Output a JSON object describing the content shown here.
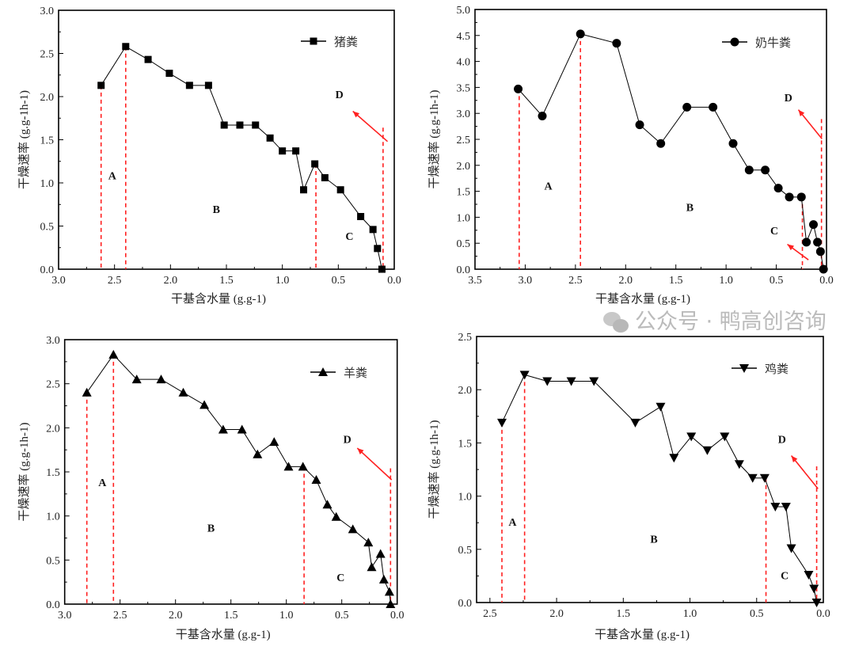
{
  "chart_data": [
    {
      "type": "line",
      "xlabel": "干基含水量 (g.g-1)",
      "ylabel": "干燥速率 (g.g-1h-1)",
      "xlim": [
        3.0,
        0.0
      ],
      "ylim": [
        0,
        3.0
      ],
      "xticks": [
        "3.0",
        "2.5",
        "2.0",
        "1.5",
        "1.0",
        "0.5",
        "0.0"
      ],
      "yticks": [
        "0.0",
        "0.5",
        "1.0",
        "1.5",
        "2.0",
        "2.5",
        "3.0"
      ],
      "legend_position": "top-right",
      "marker": "square",
      "series": [
        {
          "name": "猪粪",
          "x": [
            2.62,
            2.4,
            2.2,
            2.01,
            1.83,
            1.66,
            1.52,
            1.38,
            1.24,
            1.11,
            1.0,
            0.88,
            0.81,
            0.71,
            0.62,
            0.48,
            0.3,
            0.19,
            0.15,
            0.11
          ],
          "y": [
            2.13,
            2.58,
            2.43,
            2.27,
            2.13,
            2.13,
            1.67,
            1.67,
            1.67,
            1.52,
            1.37,
            1.37,
            0.92,
            1.22,
            1.06,
            0.92,
            0.61,
            0.46,
            0.24,
            0.0
          ]
        }
      ],
      "dividers": [
        {
          "x": 2.62,
          "y": 2.13
        },
        {
          "x": 2.4,
          "y": 2.58
        },
        {
          "x": 0.7,
          "y": 1.22
        },
        {
          "x": 0.1,
          "y": 1.64
        }
      ],
      "arrows": [
        {
          "from": [
            0.06,
            1.48
          ],
          "to": [
            0.37,
            1.83
          ]
        }
      ],
      "regions": [
        {
          "label": "A",
          "x": 2.52,
          "y": 1.04
        },
        {
          "label": "B",
          "x": 1.59,
          "y": 0.65
        },
        {
          "label": "C",
          "x": 0.4,
          "y": 0.34
        },
        {
          "label": "D",
          "x": 0.49,
          "y": 1.98
        }
      ],
      "colors": {
        "line": "#000000",
        "divider": "#ff2020",
        "arrow": "#ff2020"
      }
    },
    {
      "type": "line",
      "xlabel": "干基含水量 (g.g-1)",
      "ylabel": "干燥速率 (g.g-1h-1)",
      "xlim": [
        3.5,
        0.0
      ],
      "ylim": [
        0,
        5.0
      ],
      "xticks": [
        "3.5",
        "3.0",
        "2.5",
        "2.0",
        "1.5",
        "1.0",
        "0.5",
        "0.0"
      ],
      "yticks": [
        "0.0",
        "0.5",
        "1.0",
        "1.5",
        "2.0",
        "2.5",
        "3.0",
        "3.5",
        "4.0",
        "4.5",
        "5.0"
      ],
      "legend_position": "top-right",
      "marker": "circle",
      "series": [
        {
          "name": "奶牛粪",
          "x": [
            3.07,
            2.83,
            2.45,
            2.09,
            1.86,
            1.65,
            1.39,
            1.13,
            0.93,
            0.77,
            0.61,
            0.48,
            0.37,
            0.25,
            0.2,
            0.13,
            0.09,
            0.06,
            0.03
          ],
          "y": [
            3.47,
            2.95,
            4.53,
            4.35,
            2.78,
            2.42,
            3.12,
            3.12,
            2.42,
            1.91,
            1.91,
            1.56,
            1.39,
            1.39,
            0.52,
            0.86,
            0.52,
            0.34,
            0.0
          ]
        }
      ],
      "dividers": [
        {
          "x": 3.06,
          "y": 3.47
        },
        {
          "x": 2.45,
          "y": 4.53
        },
        {
          "x": 0.24,
          "y": 1.39
        },
        {
          "x": 0.05,
          "y": 2.89
        }
      ],
      "arrows": [
        {
          "from": [
            0.045,
            2.51
          ],
          "to": [
            0.28,
            3.07
          ]
        },
        {
          "from": [
            0.18,
            0.18
          ],
          "to": [
            0.39,
            0.48
          ]
        }
      ],
      "regions": [
        {
          "label": "A",
          "x": 2.77,
          "y": 1.53
        },
        {
          "label": "B",
          "x": 1.36,
          "y": 1.12
        },
        {
          "label": "C",
          "x": 0.52,
          "y": 0.67
        },
        {
          "label": "D",
          "x": 0.38,
          "y": 3.23
        }
      ],
      "colors": {
        "line": "#000000",
        "divider": "#ff2020",
        "arrow": "#ff2020"
      }
    },
    {
      "type": "line",
      "xlabel": "干基含水量 (g.g-1)",
      "ylabel": "干燥速率 (g.g-1h-1)",
      "xlim": [
        3.0,
        0.0
      ],
      "ylim": [
        0,
        3.0
      ],
      "xticks": [
        "3.0",
        "2.5",
        "2.0",
        "1.5",
        "1.0",
        "0.5",
        "0.0"
      ],
      "yticks": [
        "0.0",
        "0.5",
        "1.0",
        "1.5",
        "2.0",
        "2.5",
        "3.0"
      ],
      "legend_position": "top-right",
      "marker": "triangle-up",
      "series": [
        {
          "name": "羊粪",
          "x": [
            2.8,
            2.56,
            2.35,
            2.13,
            1.93,
            1.74,
            1.57,
            1.4,
            1.26,
            1.11,
            0.98,
            0.85,
            0.73,
            0.63,
            0.55,
            0.4,
            0.26,
            0.23,
            0.15,
            0.12,
            0.07,
            0.06
          ],
          "y": [
            2.4,
            2.83,
            2.55,
            2.55,
            2.4,
            2.26,
            1.98,
            1.98,
            1.7,
            1.84,
            1.56,
            1.56,
            1.41,
            1.13,
            0.99,
            0.85,
            0.7,
            0.42,
            0.57,
            0.28,
            0.14,
            0.0
          ]
        }
      ],
      "dividers": [
        {
          "x": 2.8,
          "y": 2.4
        },
        {
          "x": 2.56,
          "y": 2.83
        },
        {
          "x": 0.84,
          "y": 1.56
        },
        {
          "x": 0.06,
          "y": 1.54
        }
      ],
      "arrows": [
        {
          "from": [
            0.05,
            1.41
          ],
          "to": [
            0.36,
            1.77
          ]
        }
      ],
      "regions": [
        {
          "label": "A",
          "x": 2.66,
          "y": 1.34
        },
        {
          "label": "B",
          "x": 1.68,
          "y": 0.82
        },
        {
          "label": "C",
          "x": 0.51,
          "y": 0.26
        },
        {
          "label": "D",
          "x": 0.45,
          "y": 1.83
        }
      ],
      "colors": {
        "line": "#000000",
        "divider": "#ff2020",
        "arrow": "#ff2020"
      }
    },
    {
      "type": "line",
      "xlabel": "干基含水量 (g.g-1)",
      "ylabel": "干燥速率 (g.g-1h-1)",
      "xlim": [
        2.6,
        0.0
      ],
      "ylim": [
        0,
        2.5
      ],
      "xticks": [
        "2.5",
        "2.0",
        "1.5",
        "1.0",
        "0.5",
        "0.0"
      ],
      "yticks": [
        "0.0",
        "0.5",
        "1.0",
        "1.5",
        "2.0",
        "2.5"
      ],
      "legend_position": "top-right",
      "marker": "triangle-down",
      "series": [
        {
          "name": "鸡粪",
          "x": [
            2.41,
            2.24,
            2.07,
            1.89,
            1.72,
            1.41,
            1.22,
            1.12,
            0.99,
            0.87,
            0.74,
            0.63,
            0.53,
            0.44,
            0.36,
            0.28,
            0.24,
            0.11,
            0.07,
            0.05
          ],
          "y": [
            1.69,
            2.14,
            2.08,
            2.08,
            2.08,
            1.69,
            1.84,
            1.36,
            1.56,
            1.43,
            1.56,
            1.3,
            1.17,
            1.17,
            0.9,
            0.9,
            0.51,
            0.26,
            0.13,
            0.0
          ]
        }
      ],
      "dividers": [
        {
          "x": 2.41,
          "y": 1.69
        },
        {
          "x": 2.24,
          "y": 2.14
        },
        {
          "x": 0.43,
          "y": 1.17
        },
        {
          "x": 0.05,
          "y": 1.28
        }
      ],
      "arrows": [
        {
          "from": [
            0.04,
            1.07
          ],
          "to": [
            0.24,
            1.38
          ]
        }
      ],
      "regions": [
        {
          "label": "A",
          "x": 2.33,
          "y": 0.72
        },
        {
          "label": "B",
          "x": 1.27,
          "y": 0.56
        },
        {
          "label": "C",
          "x": 0.29,
          "y": 0.22
        },
        {
          "label": "D",
          "x": 0.31,
          "y": 1.5
        }
      ],
      "colors": {
        "line": "#000000",
        "divider": "#ff2020",
        "arrow": "#ff2020"
      }
    }
  ],
  "watermark": "公众号 · 鸭高创咨询"
}
